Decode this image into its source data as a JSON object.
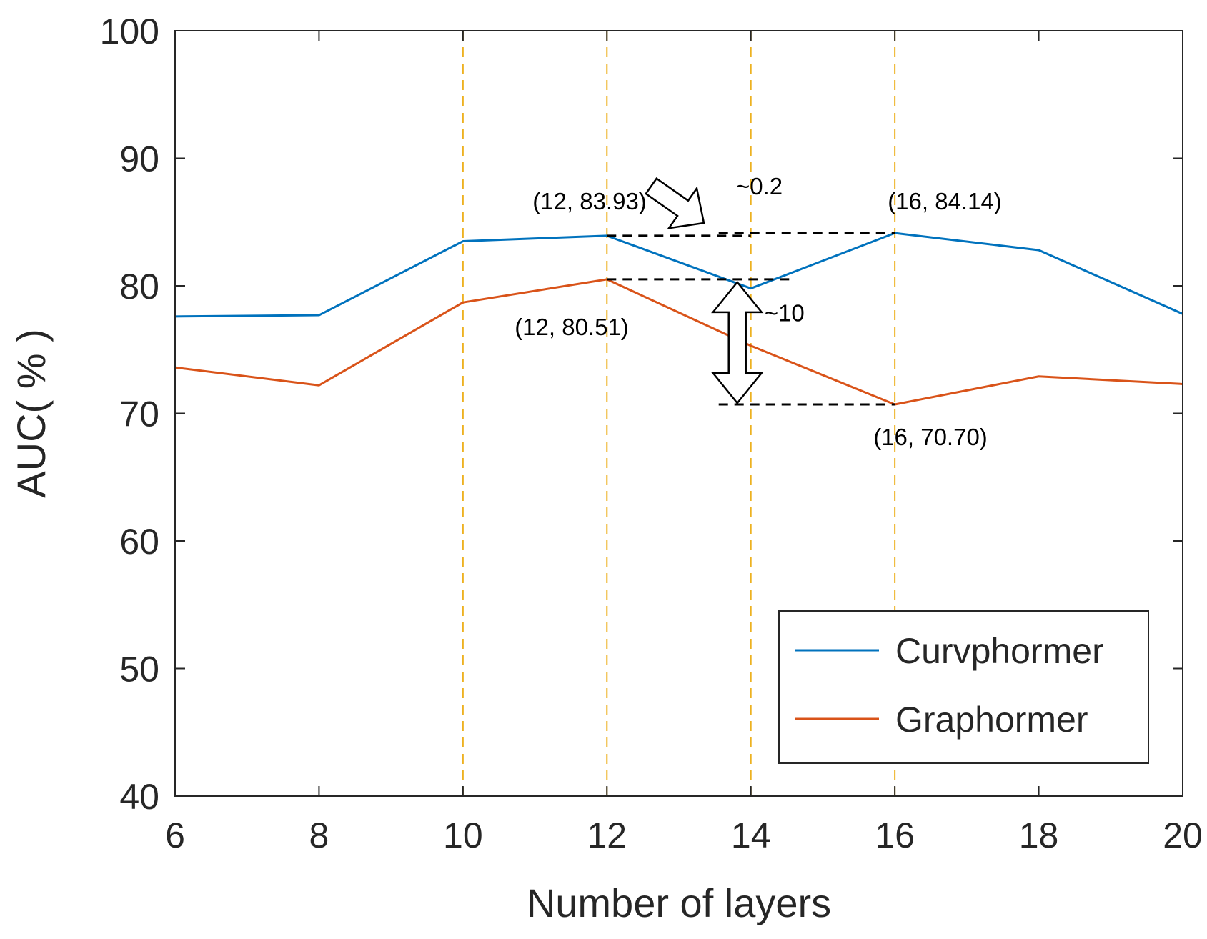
{
  "chart_data": {
    "type": "line",
    "xlabel": "Number of layers",
    "ylabel": "AUC( % )",
    "xlim": [
      6,
      20
    ],
    "ylim": [
      40,
      100
    ],
    "xticks": [
      6,
      8,
      10,
      12,
      14,
      16,
      18,
      20
    ],
    "yticks": [
      40,
      50,
      60,
      70,
      80,
      90,
      100
    ],
    "grid": false,
    "legend_position": "bottom-right",
    "x": [
      6,
      8,
      10,
      12,
      14,
      16,
      18,
      20
    ],
    "series": [
      {
        "name": "Curvphormer",
        "color": "#0072BD",
        "values": [
          77.6,
          77.7,
          83.5,
          83.93,
          79.8,
          84.14,
          82.8,
          77.8
        ]
      },
      {
        "name": "Graphormer",
        "color": "#D95319",
        "values": [
          73.6,
          72.2,
          78.7,
          80.51,
          75.3,
          70.7,
          72.9,
          72.3
        ]
      }
    ],
    "reference_lines": {
      "x": [
        10,
        12,
        14,
        16
      ],
      "color": "#EDB120"
    },
    "annotations": [
      {
        "text": "(12, 83.93)",
        "x": 12,
        "y": 83.93
      },
      {
        "text": "(16, 84.14)",
        "x": 16,
        "y": 84.14
      },
      {
        "text": "(12, 80.51)",
        "x": 12,
        "y": 80.51
      },
      {
        "text": "(16, 70.70)",
        "x": 16,
        "y": 70.7
      },
      {
        "text": "~0.2",
        "from": 83.93,
        "to": 84.14
      },
      {
        "text": "~10",
        "from": 80.51,
        "to": 70.7
      }
    ]
  }
}
